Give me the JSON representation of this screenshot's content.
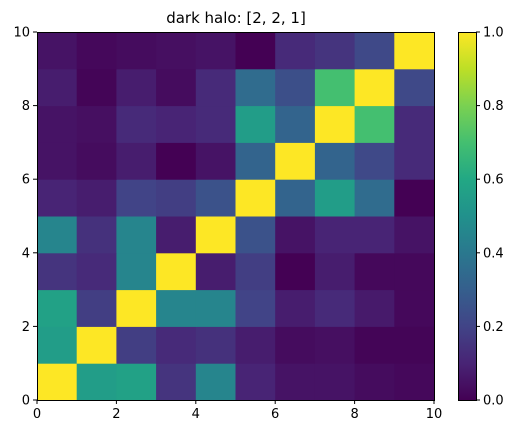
{
  "chart_data": {
    "type": "heatmap",
    "title": "dark halo: [2, 2, 1]",
    "xlabel": "",
    "ylabel": "",
    "xlim": [
      0,
      10
    ],
    "ylim": [
      0,
      10
    ],
    "x_ticks": [
      0,
      2,
      4,
      6,
      8,
      10
    ],
    "y_ticks": [
      0,
      2,
      4,
      6,
      8,
      10
    ],
    "x_tick_labels": [
      "0",
      "2",
      "4",
      "6",
      "8",
      "10"
    ],
    "y_tick_labels": [
      "0",
      "2",
      "4",
      "6",
      "8",
      "10"
    ],
    "colormap": "viridis",
    "colorbar": {
      "range": [
        0.0,
        1.0
      ],
      "ticks": [
        0.0,
        0.2,
        0.4,
        0.6,
        0.8,
        1.0
      ],
      "tick_labels": [
        "0.0",
        "0.2",
        "0.4",
        "0.6",
        "0.8",
        "1.0"
      ]
    },
    "grid": false,
    "rows_note": "row 0 = y in [0,1], columns x = 0..9",
    "values": [
      [
        1.0,
        0.55,
        0.57,
        0.15,
        0.45,
        0.1,
        0.05,
        0.05,
        0.03,
        0.02
      ],
      [
        0.55,
        1.0,
        0.18,
        0.12,
        0.14,
        0.08,
        0.03,
        0.04,
        0.01,
        0.01
      ],
      [
        0.57,
        0.18,
        1.0,
        0.45,
        0.45,
        0.2,
        0.08,
        0.12,
        0.07,
        0.02
      ],
      [
        0.15,
        0.12,
        0.45,
        1.0,
        0.08,
        0.18,
        0.0,
        0.08,
        0.02,
        0.02
      ],
      [
        0.45,
        0.14,
        0.45,
        0.08,
        1.0,
        0.25,
        0.05,
        0.1,
        0.1,
        0.05
      ],
      [
        0.1,
        0.08,
        0.2,
        0.18,
        0.25,
        1.0,
        0.32,
        0.55,
        0.35,
        0.0
      ],
      [
        0.05,
        0.03,
        0.08,
        0.0,
        0.05,
        0.32,
        1.0,
        0.32,
        0.22,
        0.12
      ],
      [
        0.05,
        0.04,
        0.12,
        0.1,
        0.12,
        0.55,
        0.32,
        1.0,
        0.7,
        0.12
      ],
      [
        0.08,
        0.01,
        0.08,
        0.03,
        0.12,
        0.35,
        0.24,
        0.7,
        1.0,
        0.22
      ],
      [
        0.05,
        0.02,
        0.03,
        0.04,
        0.05,
        0.0,
        0.12,
        0.15,
        0.22,
        1.0
      ]
    ]
  }
}
